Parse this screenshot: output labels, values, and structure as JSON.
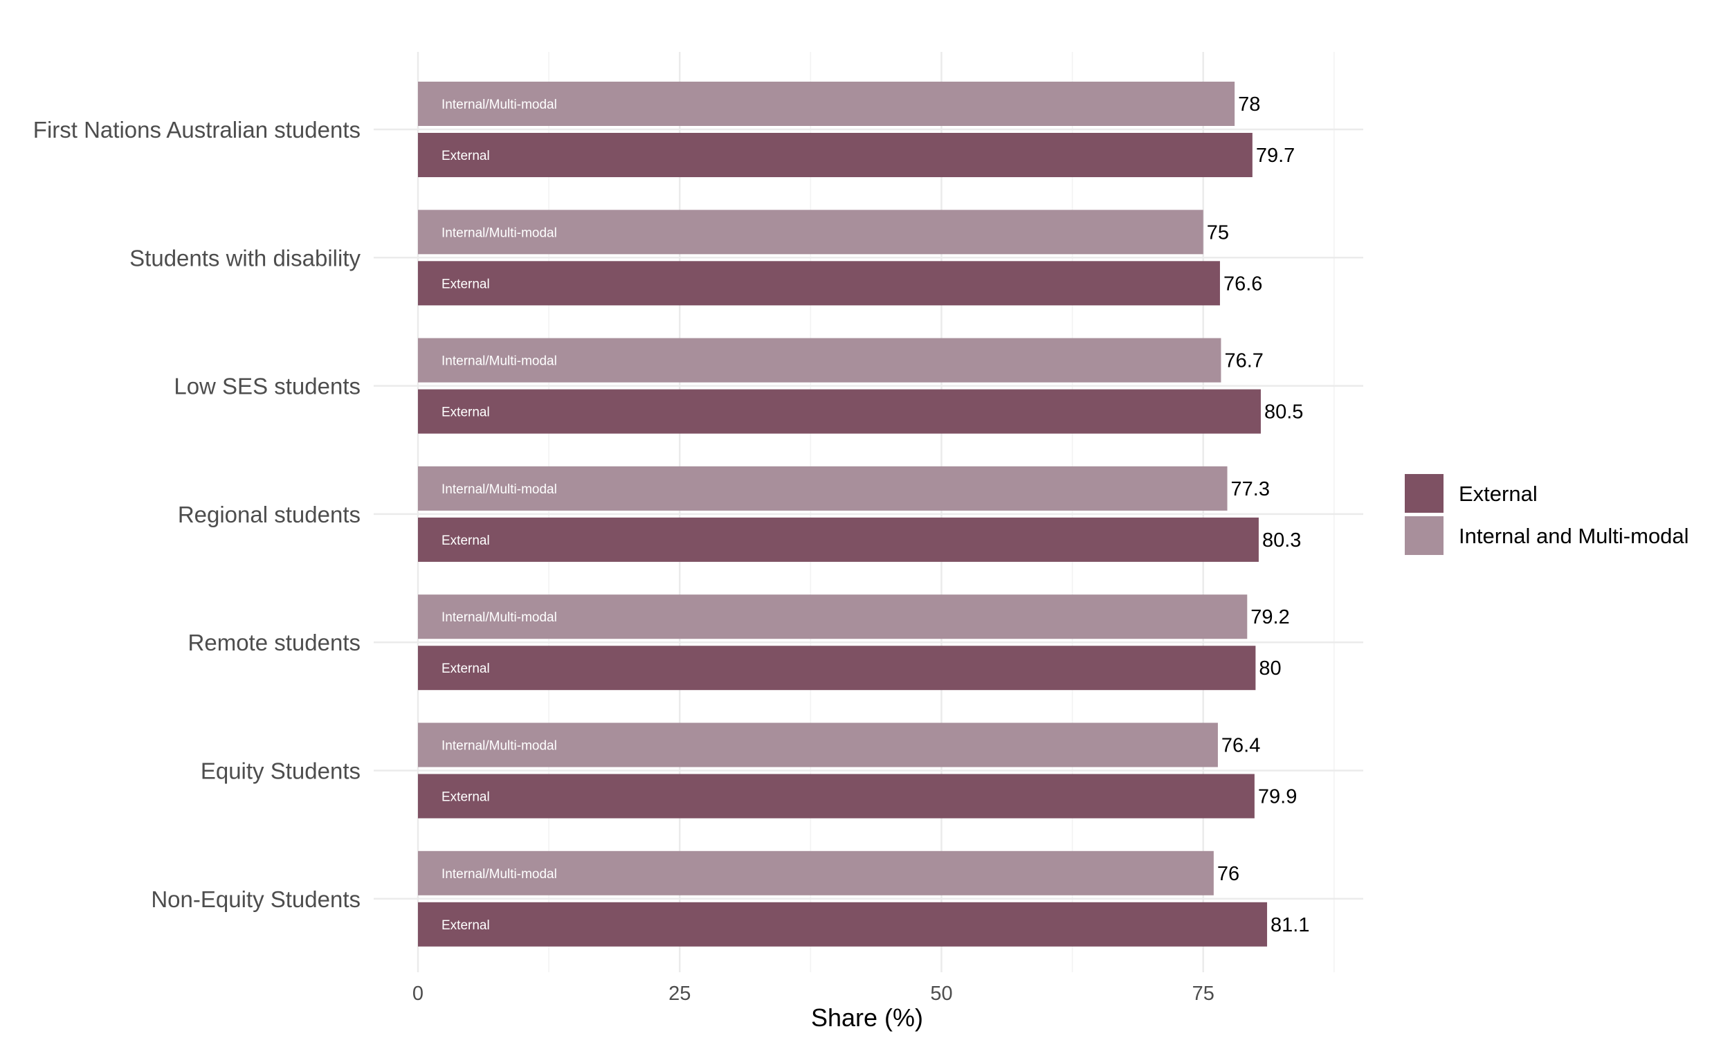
{
  "chart_data": {
    "type": "bar",
    "orientation": "horizontal",
    "categories": [
      "First Nations Australian students",
      "Students with disability",
      "Low SES students",
      "Regional students",
      "Remote students",
      "Equity Students",
      "Non-Equity Students"
    ],
    "series": [
      {
        "name": "Internal and Multi-modal",
        "bar_label": "Internal/Multi-modal",
        "color": "#a88f9b",
        "values": [
          78,
          75,
          76.7,
          77.3,
          79.2,
          76.4,
          76
        ]
      },
      {
        "name": "External",
        "bar_label": "External",
        "color": "#7e5163",
        "values": [
          79.7,
          76.6,
          80.5,
          80.3,
          80,
          79.9,
          81.1
        ]
      }
    ],
    "xlabel": "Share (%)",
    "xlim": [
      0,
      90
    ],
    "xticks": [
      0,
      25,
      50,
      75
    ],
    "grid": true,
    "legend_position": "right",
    "legend": [
      {
        "name": "External",
        "color": "#7e5163"
      },
      {
        "name": "Internal and Multi-modal",
        "color": "#a88f9b"
      }
    ]
  }
}
